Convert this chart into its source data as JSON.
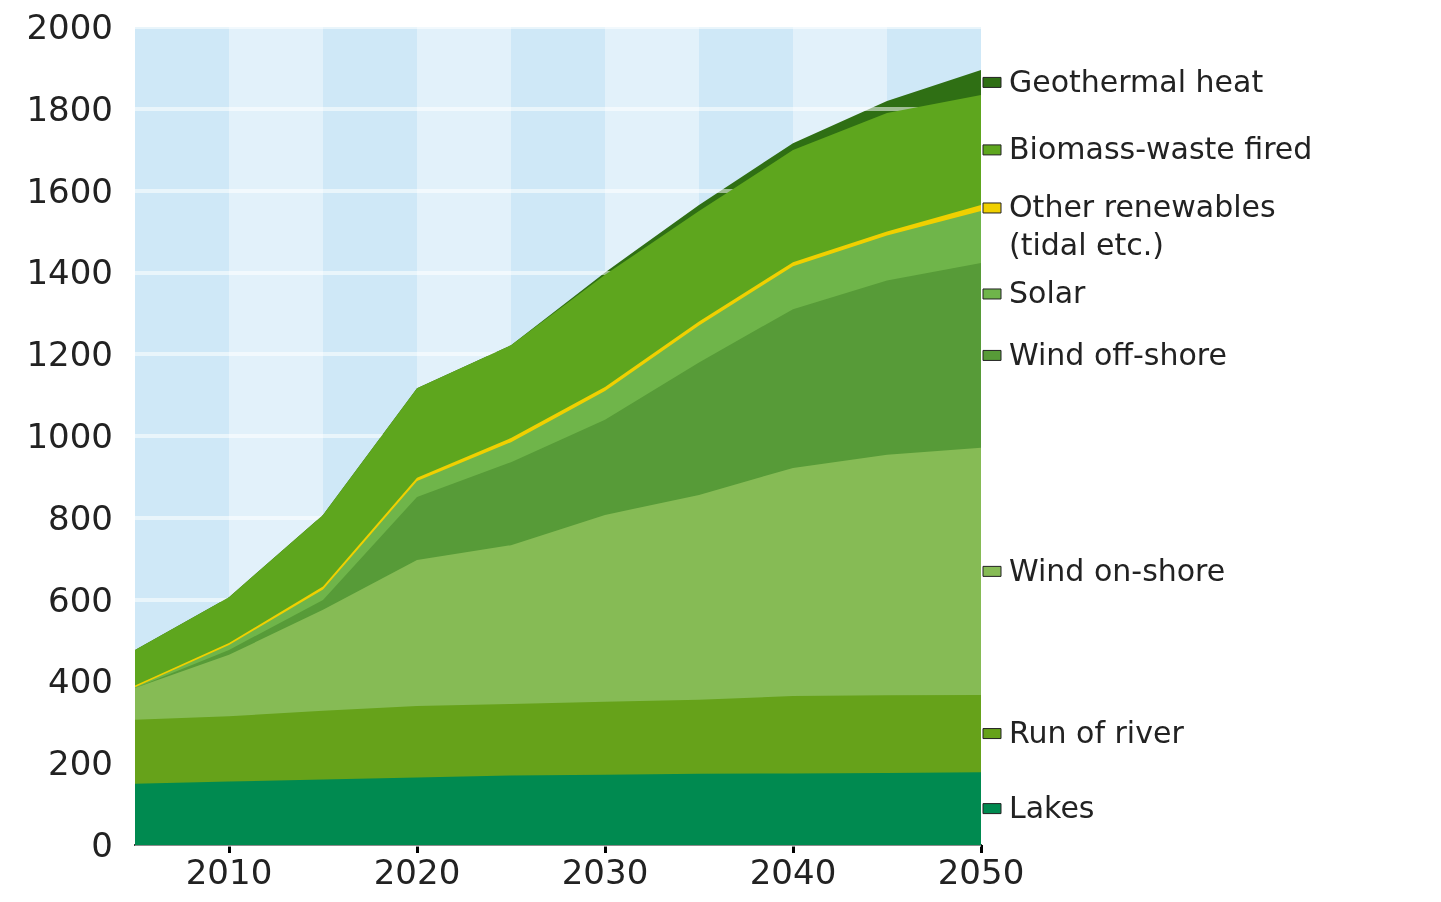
{
  "chart_data": {
    "type": "area",
    "stacked": true,
    "x": [
      2005,
      2010,
      2015,
      2020,
      2025,
      2030,
      2035,
      2040,
      2045,
      2050
    ],
    "xlim": [
      2005,
      2050
    ],
    "xticks": [
      2010,
      2020,
      2030,
      2040,
      2050
    ],
    "ylim": [
      0,
      2000
    ],
    "yticks": [
      0,
      200,
      400,
      600,
      800,
      1000,
      1200,
      1400,
      1600,
      1800,
      2000
    ],
    "grid": "y",
    "legend": "right",
    "bands": [
      {
        "axis": "x",
        "from": 2005,
        "to": 2010,
        "color": "#cfe8f7"
      },
      {
        "axis": "x",
        "from": 2015,
        "to": 2020,
        "color": "#cfe8f7"
      },
      {
        "axis": "x",
        "from": 2025,
        "to": 2030,
        "color": "#cfe8f7"
      },
      {
        "axis": "x",
        "from": 2035,
        "to": 2040,
        "color": "#cfe8f7"
      },
      {
        "axis": "x",
        "from": 2045,
        "to": 2050,
        "color": "#cfe8f7"
      },
      {
        "axis": "x",
        "from": 2010,
        "to": 2015,
        "color": "#e2f1fa"
      },
      {
        "axis": "x",
        "from": 2020,
        "to": 2025,
        "color": "#e2f1fa"
      },
      {
        "axis": "x",
        "from": 2030,
        "to": 2035,
        "color": "#e2f1fa"
      },
      {
        "axis": "x",
        "from": 2040,
        "to": 2045,
        "color": "#e2f1fa"
      }
    ],
    "series": [
      {
        "name": "Lakes",
        "color": "#008a50",
        "values": [
          150,
          155,
          160,
          165,
          170,
          172,
          174,
          175,
          176,
          178
        ]
      },
      {
        "name": "Run of river",
        "color": "#66a21a",
        "values": [
          156,
          160,
          168,
          175,
          175,
          178,
          181,
          189,
          190,
          189
        ]
      },
      {
        "name": "Wind on-shore",
        "color": "#86bb55",
        "values": [
          78,
          150,
          247,
          357,
          388,
          457,
          501,
          558,
          588,
          604
        ]
      },
      {
        "name": "Wind off-shore",
        "color": "#579b38",
        "values": [
          0,
          12,
          24,
          154,
          203,
          233,
          324,
          388,
          426,
          452
        ]
      },
      {
        "name": "Solar",
        "color": "#6fb54a",
        "values": [
          2,
          12,
          26,
          39,
          49,
          70,
          90,
          105,
          110,
          127
        ]
      },
      {
        "name": "Other renewables (tidal etc.)",
        "color": "#f0d000",
        "values": [
          4,
          5,
          7,
          8,
          10,
          10,
          10,
          10,
          10,
          15
        ]
      },
      {
        "name": "Biomass-waste fired",
        "color": "#5ea61e",
        "values": [
          87,
          112,
          175,
          219,
          227,
          274,
          270,
          274,
          290,
          269
        ]
      },
      {
        "name": "Geothermal heat",
        "color": "#2f6f14",
        "values": [
          0,
          0,
          0,
          0,
          0,
          6,
          15,
          17,
          29,
          61
        ]
      }
    ]
  }
}
